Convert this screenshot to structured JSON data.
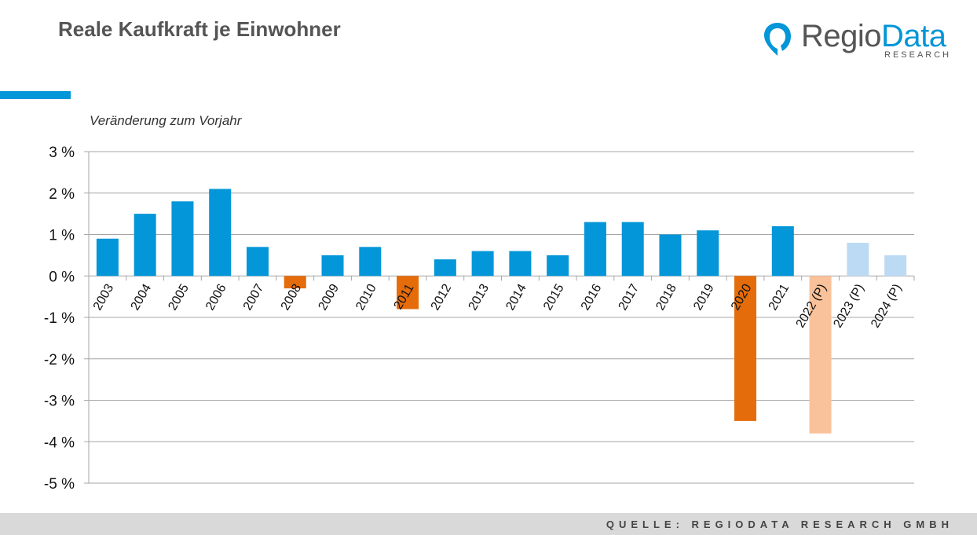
{
  "header": {
    "title": "Reale Kaufkraft je Einwohner",
    "logo_regio": "Regio",
    "logo_data": "Data",
    "logo_sub": "RESEARCH"
  },
  "footer": {
    "source": "QUELLE: REGIODATA RESEARCH GMBH"
  },
  "colors": {
    "positive": "#0396d8",
    "negative": "#e46c0a",
    "projection_positive": "#bcdaf4",
    "projection_negative": "#f9c29a",
    "accent": "#0396d8"
  },
  "chart_data": {
    "type": "bar",
    "subtitle": "Veränderung zum Vorjahr",
    "categories": [
      "2003",
      "2004",
      "2005",
      "2006",
      "2007",
      "2008",
      "2009",
      "2010",
      "2011",
      "2012",
      "2013",
      "2014",
      "2015",
      "2016",
      "2017",
      "2018",
      "2019",
      "2020",
      "2021",
      "2022 (P)",
      "2023 (P)",
      "2024 (P)"
    ],
    "values": [
      0.9,
      1.5,
      1.8,
      2.1,
      0.7,
      -0.3,
      0.5,
      0.7,
      -0.8,
      0.4,
      0.6,
      0.6,
      0.5,
      1.3,
      1.3,
      1.0,
      1.1,
      -3.5,
      1.2,
      -3.8,
      0.8,
      0.5
    ],
    "projection": [
      false,
      false,
      false,
      false,
      false,
      false,
      false,
      false,
      false,
      false,
      false,
      false,
      false,
      false,
      false,
      false,
      false,
      false,
      false,
      true,
      true,
      true
    ],
    "ylim": [
      -5,
      3
    ],
    "yticks": [
      3,
      2,
      1,
      0,
      -1,
      -2,
      -3,
      -4,
      -5
    ],
    "ytick_labels": [
      "3 %",
      "2 %",
      "1 %",
      "0 %",
      "-1 %",
      "-2 %",
      "-3 %",
      "-4 %",
      "-5 %"
    ],
    "grid": true,
    "xlabel": "",
    "ylabel": ""
  }
}
